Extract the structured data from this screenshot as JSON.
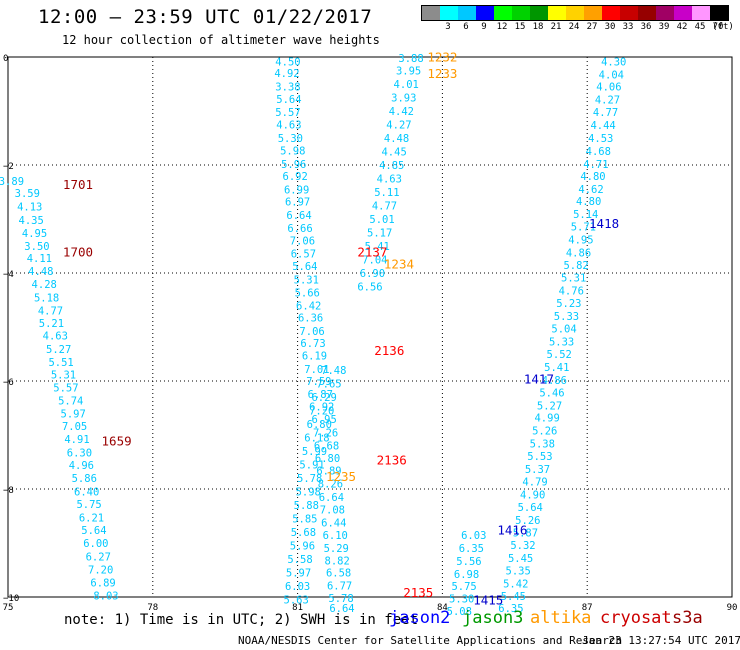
{
  "title": "12:00 — 23:59 UTC 01/22/2017",
  "subtitle": "12 hour collection of altimeter wave heights",
  "legend": {
    "unit": "(ft)",
    "bins": [
      {
        "label": "",
        "color": "#8c8c8c"
      },
      {
        "label": "3",
        "color": "#00ffff"
      },
      {
        "label": "6",
        "color": "#00c8ff"
      },
      {
        "label": "9",
        "color": "#0000ff"
      },
      {
        "label": "12",
        "color": "#00ff00"
      },
      {
        "label": "15",
        "color": "#00d200"
      },
      {
        "label": "18",
        "color": "#009600"
      },
      {
        "label": "21",
        "color": "#ffff00"
      },
      {
        "label": "24",
        "color": "#ffd200"
      },
      {
        "label": "27",
        "color": "#ffa000"
      },
      {
        "label": "30",
        "color": "#ff0000"
      },
      {
        "label": "33",
        "color": "#c80000"
      },
      {
        "label": "36",
        "color": "#960000"
      },
      {
        "label": "39",
        "color": "#a00064"
      },
      {
        "label": "42",
        "color": "#c800c8"
      },
      {
        "label": "45",
        "color": "#ff96ff"
      },
      {
        "label": "70",
        "color": "#000000"
      }
    ]
  },
  "note": "note: 1) Time is in UTC; 2) SWH is in feet",
  "missions": [
    {
      "name": "jason2",
      "color": "#0000ff"
    },
    {
      "name": "jason3",
      "color": "#009900"
    },
    {
      "name": "altika",
      "color": "#ff9900"
    },
    {
      "name": "cryosat",
      "color": "#cc0000"
    },
    {
      "name": "s3a",
      "color": "#990000"
    }
  ],
  "credit": "NOAA/NESDIS Center for Satellite Applications and Research",
  "timestamp": "Jan 23 13:27:54 UTC 2017",
  "chart_data": {
    "type": "scatter",
    "xlim": [
      75,
      90
    ],
    "ylim": [
      -10,
      0
    ],
    "x_ticks": [
      75,
      78,
      81,
      84,
      87,
      90
    ],
    "y_ticks": [
      0,
      -2,
      -4,
      -6,
      -8,
      -10
    ],
    "x_tick_labels": [
      "75",
      "78",
      "81",
      "84",
      "87",
      "90"
    ],
    "y_tick_labels": [
      "0",
      "−2",
      "−4",
      "−6",
      "−8",
      "−10"
    ],
    "grid": true,
    "point_color": "#00c8ff",
    "passes": [
      {
        "id": "track-1",
        "points": [
          [
            75.07,
            -2.3,
            "3.89"
          ],
          [
            75.4,
            -2.52,
            "3.59"
          ],
          [
            75.45,
            -2.77,
            "4.13"
          ],
          [
            75.48,
            -3.02,
            "4.35"
          ],
          [
            75.55,
            -3.26,
            "4.95"
          ],
          [
            75.6,
            -3.5,
            "3.50"
          ],
          [
            75.65,
            -3.72,
            "4.11"
          ],
          [
            75.68,
            -3.96,
            "4.48"
          ],
          [
            75.75,
            -4.2,
            "4.28"
          ],
          [
            75.8,
            -4.45,
            "5.18"
          ],
          [
            75.88,
            -4.69,
            "4.77"
          ],
          [
            75.9,
            -4.93,
            "5.21"
          ],
          [
            75.98,
            -5.16,
            "4.63"
          ],
          [
            76.05,
            -5.41,
            "5.27"
          ],
          [
            76.1,
            -5.65,
            "5.51"
          ],
          [
            76.15,
            -5.88,
            "5.31"
          ],
          [
            76.2,
            -6.12,
            "5.57"
          ],
          [
            76.3,
            -6.36,
            "5.74"
          ],
          [
            76.35,
            -6.6,
            "5.97"
          ],
          [
            76.38,
            -6.83,
            "7.05"
          ],
          [
            76.43,
            -7.07,
            "4.91"
          ],
          [
            76.48,
            -7.32,
            "6.30"
          ],
          [
            76.52,
            -7.56,
            "4.96"
          ],
          [
            76.58,
            -7.8,
            "5.86"
          ],
          [
            76.63,
            -8.05,
            "6.40"
          ],
          [
            76.68,
            -8.28,
            "5.75"
          ],
          [
            76.73,
            -8.53,
            "6.21"
          ],
          [
            76.78,
            -8.76,
            "5.64"
          ],
          [
            76.82,
            -9.0,
            "6.00"
          ],
          [
            76.87,
            -9.25,
            "6.27"
          ],
          [
            76.92,
            -9.49,
            "7.20"
          ],
          [
            76.97,
            -9.73,
            "6.89"
          ],
          [
            77.03,
            -9.97,
            "8.03"
          ]
        ]
      },
      {
        "id": "track-2",
        "points": [
          [
            80.8,
            -0.08,
            "4.50"
          ],
          [
            80.78,
            -0.3,
            "4.92"
          ],
          [
            80.8,
            -0.55,
            "3.38"
          ],
          [
            80.82,
            -0.78,
            "5.64"
          ],
          [
            80.8,
            -1.02,
            "5.57"
          ],
          [
            80.82,
            -1.25,
            "4.63"
          ],
          [
            80.85,
            -1.5,
            "5.30"
          ],
          [
            80.9,
            -1.73,
            "5.98"
          ],
          [
            80.92,
            -1.98,
            "5.96"
          ],
          [
            80.95,
            -2.2,
            "6.92"
          ],
          [
            80.98,
            -2.45,
            "6.99"
          ],
          [
            81.0,
            -2.68,
            "6.97"
          ],
          [
            81.03,
            -2.93,
            "6.64"
          ],
          [
            81.05,
            -3.17,
            "6.66"
          ],
          [
            81.1,
            -3.4,
            "7.06"
          ],
          [
            81.12,
            -3.64,
            "6.57"
          ],
          [
            81.15,
            -3.87,
            "5.64"
          ],
          [
            81.18,
            -4.12,
            "5.31"
          ],
          [
            81.2,
            -4.36,
            "5.66"
          ],
          [
            81.23,
            -4.6,
            "6.42"
          ],
          [
            81.27,
            -4.82,
            "6.36"
          ],
          [
            81.3,
            -5.07,
            "7.06"
          ],
          [
            81.32,
            -5.3,
            "6.73"
          ],
          [
            81.35,
            -5.53,
            "6.19"
          ],
          [
            81.4,
            -5.78,
            "7.01"
          ],
          [
            81.44,
            -6.0,
            "7.59"
          ],
          [
            81.47,
            -6.24,
            "6.87"
          ],
          [
            81.5,
            -6.47,
            "6.92"
          ],
          [
            81.55,
            -6.7,
            "6.95"
          ],
          [
            81.58,
            -6.95,
            "7.26"
          ],
          [
            81.6,
            -7.19,
            "6.68"
          ],
          [
            81.62,
            -7.43,
            "6.80"
          ],
          [
            81.65,
            -7.66,
            "6.89"
          ],
          [
            81.68,
            -7.9,
            "8.26"
          ],
          [
            81.7,
            -8.15,
            "6.64"
          ],
          [
            81.72,
            -8.38,
            "7.08"
          ],
          [
            81.75,
            -8.62,
            "6.44"
          ],
          [
            81.78,
            -8.85,
            "6.10"
          ],
          [
            81.8,
            -9.09,
            "5.29"
          ],
          [
            81.82,
            -9.32,
            "8.82"
          ],
          [
            81.85,
            -9.55,
            "6.58"
          ],
          [
            81.87,
            -9.79,
            "6.77"
          ],
          [
            81.9,
            -10.02,
            "5.78"
          ],
          [
            81.92,
            -10.2,
            "6.64"
          ]
        ]
      },
      {
        "id": "track-3",
        "points": [
          [
            81.75,
            -5.8,
            "7.48"
          ],
          [
            81.65,
            -6.05,
            "7.65"
          ],
          [
            81.55,
            -6.3,
            "6.29"
          ],
          [
            81.5,
            -6.55,
            "7.20"
          ],
          [
            81.45,
            -6.8,
            "6.80"
          ],
          [
            81.4,
            -7.05,
            "6.18"
          ],
          [
            81.35,
            -7.3,
            "5.99"
          ],
          [
            81.3,
            -7.55,
            "5.91"
          ],
          [
            81.25,
            -7.8,
            "5.78"
          ],
          [
            81.22,
            -8.05,
            "5.98"
          ],
          [
            81.18,
            -8.3,
            "5.88"
          ],
          [
            81.15,
            -8.55,
            "5.85"
          ],
          [
            81.12,
            -8.8,
            "5.68"
          ],
          [
            81.1,
            -9.05,
            "5.96"
          ],
          [
            81.05,
            -9.3,
            "5.58"
          ],
          [
            81.02,
            -9.55,
            "5.97"
          ],
          [
            81.0,
            -9.8,
            "6.03"
          ],
          [
            80.97,
            -10.05,
            "5.63"
          ]
        ]
      },
      {
        "id": "track-4",
        "points": [
          [
            83.35,
            -0.02,
            "3.88"
          ],
          [
            83.3,
            -0.25,
            "3.95"
          ],
          [
            83.25,
            -0.5,
            "4.01"
          ],
          [
            83.2,
            -0.75,
            "3.93"
          ],
          [
            83.15,
            -1.0,
            "4.42"
          ],
          [
            83.1,
            -1.25,
            "4.27"
          ],
          [
            83.05,
            -1.5,
            "4.48"
          ],
          [
            83.0,
            -1.75,
            "4.45"
          ],
          [
            82.95,
            -2.0,
            "4.85"
          ],
          [
            82.9,
            -2.25,
            "4.63"
          ],
          [
            82.85,
            -2.5,
            "5.11"
          ],
          [
            82.8,
            -2.75,
            "4.77"
          ],
          [
            82.75,
            -3.0,
            "5.01"
          ],
          [
            82.7,
            -3.25,
            "5.17"
          ],
          [
            82.65,
            -3.5,
            "5.41"
          ],
          [
            82.6,
            -3.75,
            "7.04"
          ],
          [
            82.55,
            -4.0,
            "6.90"
          ],
          [
            82.5,
            -4.25,
            "6.56"
          ]
        ]
      },
      {
        "id": "track-5",
        "points": [
          [
            87.55,
            -0.08,
            "4.30"
          ],
          [
            87.5,
            -0.32,
            "4.04"
          ],
          [
            87.45,
            -0.55,
            "4.06"
          ],
          [
            87.42,
            -0.79,
            "4.27"
          ],
          [
            87.38,
            -1.02,
            "4.77"
          ],
          [
            87.33,
            -1.26,
            "4.44"
          ],
          [
            87.28,
            -1.5,
            "4.53"
          ],
          [
            87.23,
            -1.74,
            "4.68"
          ],
          [
            87.18,
            -1.98,
            "4.71"
          ],
          [
            87.12,
            -2.2,
            "4.80"
          ],
          [
            87.08,
            -2.44,
            "4.62"
          ],
          [
            87.03,
            -2.67,
            "4.80"
          ],
          [
            86.97,
            -2.91,
            "5.14"
          ],
          [
            86.92,
            -3.14,
            "5.71"
          ],
          [
            86.87,
            -3.38,
            "4.95"
          ],
          [
            86.82,
            -3.62,
            "4.86"
          ],
          [
            86.77,
            -3.85,
            "5.82"
          ],
          [
            86.72,
            -4.08,
            "5.31"
          ],
          [
            86.67,
            -4.32,
            "4.76"
          ],
          [
            86.62,
            -4.56,
            "5.23"
          ],
          [
            86.57,
            -4.8,
            "5.33"
          ],
          [
            86.52,
            -5.03,
            "5.04"
          ],
          [
            86.47,
            -5.27,
            "5.33"
          ],
          [
            86.42,
            -5.5,
            "5.52"
          ],
          [
            86.37,
            -5.74,
            "5.41"
          ],
          [
            86.32,
            -5.98,
            "4.86"
          ],
          [
            86.27,
            -6.21,
            "5.46"
          ],
          [
            86.22,
            -6.45,
            "5.27"
          ],
          [
            86.17,
            -6.68,
            "4.99"
          ],
          [
            86.12,
            -6.92,
            "5.26"
          ],
          [
            86.07,
            -7.16,
            "5.38"
          ],
          [
            86.02,
            -7.39,
            "5.53"
          ],
          [
            85.97,
            -7.63,
            "5.37"
          ],
          [
            85.92,
            -7.86,
            "4.79"
          ],
          [
            85.87,
            -8.1,
            "4.90"
          ],
          [
            85.82,
            -8.33,
            "5.64"
          ],
          [
            85.77,
            -8.57,
            "5.26"
          ],
          [
            85.72,
            -8.81,
            "5.87"
          ],
          [
            85.67,
            -9.04,
            "5.32"
          ],
          [
            85.62,
            -9.28,
            "5.45"
          ],
          [
            85.57,
            -9.51,
            "5.35"
          ],
          [
            85.52,
            -9.75,
            "5.42"
          ],
          [
            85.47,
            -9.98,
            "5.45"
          ],
          [
            85.42,
            -10.2,
            "6.35"
          ]
        ]
      }
    ],
    "extra_points": [
      [
        84.65,
        -8.85,
        "6.03"
      ],
      [
        84.6,
        -9.09,
        "6.35"
      ],
      [
        84.55,
        -9.33,
        "5.56"
      ],
      [
        84.5,
        -9.57,
        "6.98"
      ],
      [
        84.45,
        -9.8,
        "5.75"
      ],
      [
        84.4,
        -10.03,
        "5.30"
      ],
      [
        84.35,
        -10.26,
        "5.08"
      ]
    ],
    "time_labels": [
      {
        "text": "1701",
        "x": 76.45,
        "y": -2.35,
        "color": "#990000"
      },
      {
        "text": "1700",
        "x": 76.45,
        "y": -3.6,
        "color": "#990000"
      },
      {
        "text": "1659",
        "x": 77.25,
        "y": -7.1,
        "color": "#990000"
      },
      {
        "text": "1232",
        "x": 84.0,
        "y": 0.01,
        "color": "#ff9900"
      },
      {
        "text": "1233",
        "x": 84.0,
        "y": -0.3,
        "color": "#ff9900"
      },
      {
        "text": "2137",
        "x": 82.55,
        "y": -3.6,
        "color": "#ff0000"
      },
      {
        "text": "1234",
        "x": 83.1,
        "y": -3.82,
        "color": "#ff9900"
      },
      {
        "text": "2136",
        "x": 82.9,
        "y": -5.43,
        "color": "#ff0000"
      },
      {
        "text": "2136",
        "x": 82.95,
        "y": -7.45,
        "color": "#ff0000"
      },
      {
        "text": "1235",
        "x": 81.9,
        "y": -7.76,
        "color": "#ff9900"
      },
      {
        "text": "2135",
        "x": 83.5,
        "y": -9.91,
        "color": "#ff0000"
      },
      {
        "text": "1418",
        "x": 87.35,
        "y": -3.07,
        "color": "#0000cc"
      },
      {
        "text": "1417",
        "x": 86.0,
        "y": -5.95,
        "color": "#0000cc"
      },
      {
        "text": "1416",
        "x": 85.45,
        "y": -8.75,
        "color": "#0000cc"
      },
      {
        "text": "1415",
        "x": 84.95,
        "y": -10.05,
        "color": "#0000cc"
      }
    ]
  }
}
